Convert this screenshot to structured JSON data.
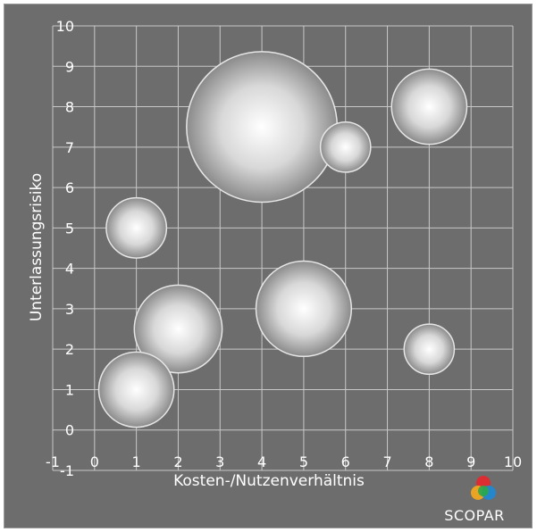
{
  "chart_data": {
    "type": "bubble",
    "xlabel": "Kosten-/Nutzenverhältnis",
    "ylabel": "Unterlassungsrisiko",
    "xlim": [
      -1,
      10
    ],
    "ylim": [
      -1,
      10
    ],
    "x_ticks": [
      "-1",
      "0",
      "1",
      "2",
      "3",
      "4",
      "5",
      "6",
      "7",
      "8",
      "9",
      "10"
    ],
    "y_ticks": [
      "-1",
      "0",
      "1",
      "2",
      "3",
      "4",
      "5",
      "6",
      "7",
      "8",
      "9",
      "10"
    ],
    "grid": true,
    "points": [
      {
        "x": 4,
        "y": 7.5,
        "size": 3.0
      },
      {
        "x": 6,
        "y": 7,
        "size": 1.0
      },
      {
        "x": 8,
        "y": 8,
        "size": 1.5
      },
      {
        "x": 1,
        "y": 5,
        "size": 1.2
      },
      {
        "x": 5,
        "y": 3,
        "size": 1.9
      },
      {
        "x": 2,
        "y": 2.5,
        "size": 1.75
      },
      {
        "x": 8,
        "y": 2,
        "size": 1.0
      },
      {
        "x": 1,
        "y": 1,
        "size": 1.5
      }
    ],
    "colors": {
      "background": "#6d6d6d",
      "grid": "#c8c8c8",
      "bubble_center": "#ffffff",
      "bubble_edge": "#8a8a8a"
    }
  },
  "brand": {
    "name": "SCOPAR",
    "logo_colors": [
      "#e8262b",
      "#f7a81b",
      "#2aa84a",
      "#1e88d6"
    ]
  }
}
